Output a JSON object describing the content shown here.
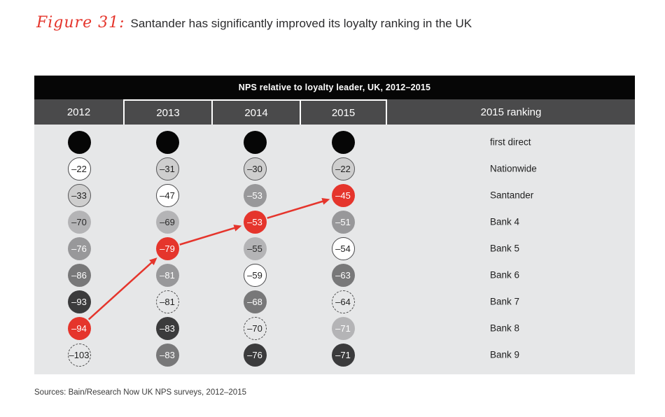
{
  "title": {
    "figure_label": "Figure 31:",
    "text": "Santander has significantly improved its loyalty ranking in the UK"
  },
  "sources": "Sources: Bain/Research Now UK NPS surveys, 2012–2015",
  "colors": {
    "accent_red": "#e5352c",
    "panel_background": "#e6e7e8",
    "header_row": "#4a4a4b",
    "title_bar": "#060606"
  },
  "chart_data": {
    "type": "table",
    "title": "NPS relative to loyalty leader, UK, 2012–2015",
    "years": [
      "2012",
      "2013",
      "2014",
      "2015"
    ],
    "ranking_column_label": "2015 ranking",
    "bank_labels_2015": [
      "first direct",
      "Nationwide",
      "Santander",
      "Bank 4",
      "Bank 5",
      "Bank 6",
      "Bank 7",
      "Bank 8",
      "Bank 9"
    ],
    "legend_note": "Rows are rank positions 1–9 per year; circle shade tracks the same bank across years; red circles are Santander",
    "styles": {
      "leader": {
        "fill": "#060606",
        "text": "#ffffff",
        "border_color": null,
        "border_style": null
      },
      "white": {
        "fill": "#ffffff",
        "text": "#1f1f1f",
        "border_color": "#4a4a4c",
        "border_style": "solid"
      },
      "ltgray": {
        "fill": "#cecece",
        "text": "#1f1f1f",
        "border_color": "#58585a",
        "border_style": "solid"
      },
      "mlgray": {
        "fill": "#b4b4b6",
        "text": "#2a2a2a",
        "border_color": null,
        "border_style": null
      },
      "mlgray_white": {
        "fill": "#b4b4b6",
        "text": "#ffffff",
        "border_color": null,
        "border_style": null
      },
      "mgray": {
        "fill": "#98989a",
        "text": "#ffffff",
        "border_color": null,
        "border_style": null
      },
      "mdgray": {
        "fill": "#787879",
        "text": "#ffffff",
        "border_color": null,
        "border_style": null
      },
      "vdark": {
        "fill": "#3b3b3c",
        "text": "#ffffff",
        "border_color": null,
        "border_style": null
      },
      "red": {
        "fill": "#e5352c",
        "text": "#ffffff",
        "border_color": null,
        "border_style": null
      },
      "dashed": {
        "fill": "transparent",
        "text": "#1f1f1f",
        "border_color": "#4a4a4a",
        "border_style": "dashed"
      }
    },
    "grid": {
      "2012": [
        {
          "value": null,
          "label": "",
          "style": "leader"
        },
        {
          "value": -22,
          "label": "–22",
          "style": "white"
        },
        {
          "value": -33,
          "label": "–33",
          "style": "ltgray"
        },
        {
          "value": -70,
          "label": "–70",
          "style": "mlgray"
        },
        {
          "value": -76,
          "label": "–76",
          "style": "mgray"
        },
        {
          "value": -86,
          "label": "–86",
          "style": "mdgray"
        },
        {
          "value": -93,
          "label": "–93",
          "style": "vdark"
        },
        {
          "value": -94,
          "label": "–94",
          "style": "red"
        },
        {
          "value": -103,
          "label": "–103",
          "style": "dashed"
        }
      ],
      "2013": [
        {
          "value": null,
          "label": "",
          "style": "leader"
        },
        {
          "value": -31,
          "label": "–31",
          "style": "ltgray"
        },
        {
          "value": -47,
          "label": "–47",
          "style": "white"
        },
        {
          "value": -69,
          "label": "–69",
          "style": "mlgray"
        },
        {
          "value": -79,
          "label": "–79",
          "style": "red"
        },
        {
          "value": -81,
          "label": "–81",
          "style": "mgray"
        },
        {
          "value": -81,
          "label": "–81",
          "style": "dashed"
        },
        {
          "value": -83,
          "label": "–83",
          "style": "vdark"
        },
        {
          "value": -83,
          "label": "–83",
          "style": "mdgray"
        }
      ],
      "2014": [
        {
          "value": null,
          "label": "",
          "style": "leader"
        },
        {
          "value": -30,
          "label": "–30",
          "style": "ltgray"
        },
        {
          "value": -53,
          "label": "–53",
          "style": "mgray"
        },
        {
          "value": -53,
          "label": "–53",
          "style": "red"
        },
        {
          "value": -55,
          "label": "–55",
          "style": "mlgray"
        },
        {
          "value": -59,
          "label": "–59",
          "style": "white"
        },
        {
          "value": -68,
          "label": "–68",
          "style": "mdgray"
        },
        {
          "value": -70,
          "label": "–70",
          "style": "dashed"
        },
        {
          "value": -76,
          "label": "–76",
          "style": "vdark"
        }
      ],
      "2015": [
        {
          "value": null,
          "label": "",
          "style": "leader"
        },
        {
          "value": -22,
          "label": "–22",
          "style": "ltgray"
        },
        {
          "value": -45,
          "label": "–45",
          "style": "red"
        },
        {
          "value": -51,
          "label": "–51",
          "style": "mgray"
        },
        {
          "value": -54,
          "label": "–54",
          "style": "white"
        },
        {
          "value": -63,
          "label": "–63",
          "style": "mdgray"
        },
        {
          "value": -64,
          "label": "–64",
          "style": "dashed"
        },
        {
          "value": -71,
          "label": "–71",
          "style": "mlgray_white"
        },
        {
          "value": -71,
          "label": "–71",
          "style": "vdark"
        }
      ]
    },
    "santander_path": {
      "2012": -94,
      "2013": -79,
      "2014": -53,
      "2015": -45
    },
    "arrows": [
      {
        "from_year": "2012",
        "from_rank": 8,
        "to_year": "2013",
        "to_rank": 5
      },
      {
        "from_year": "2013",
        "from_rank": 5,
        "to_year": "2014",
        "to_rank": 4
      },
      {
        "from_year": "2014",
        "from_rank": 4,
        "to_year": "2015",
        "to_rank": 3
      }
    ]
  }
}
